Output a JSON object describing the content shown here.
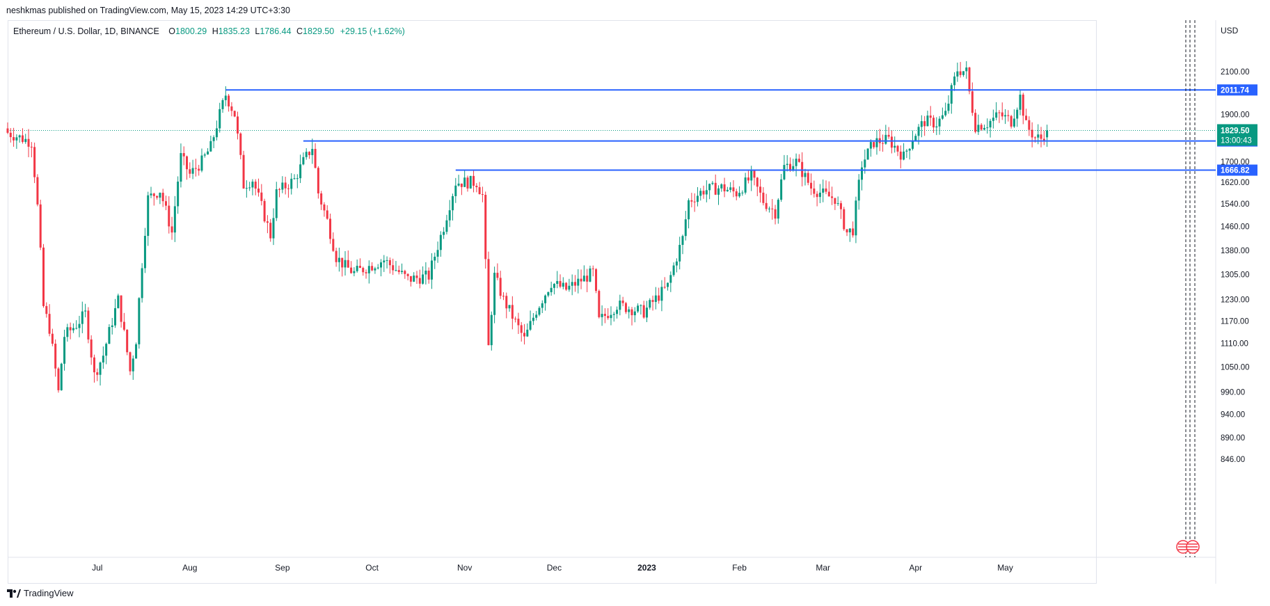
{
  "header": {
    "published_by": "neshkmas published on TradingView.com, May 15, 2023 14:29 UTC+3:30"
  },
  "legend": {
    "symbol": "Ethereum / U.S. Dollar, 1D, BINANCE",
    "open_label": "O",
    "open": "1800.29",
    "high_label": "H",
    "high": "1835.23",
    "low_label": "L",
    "low": "1786.44",
    "close_label": "C",
    "close": "1829.50",
    "change": "+29.15 (+1.62%)"
  },
  "price_axis": {
    "currency": "USD",
    "ticks": [
      "2100.00",
      "1900.00",
      "1700.00",
      "1620.00",
      "1540.00",
      "1460.00",
      "1380.00",
      "1305.00",
      "1230.00",
      "1170.00",
      "1110.00",
      "1050.00",
      "990.00",
      "940.00",
      "890.00",
      "846.00"
    ]
  },
  "time_axis": {
    "labels": [
      "Jul",
      "Aug",
      "Sep",
      "Oct",
      "Nov",
      "Dec",
      "2023",
      "Feb",
      "Mar",
      "Apr",
      "May"
    ]
  },
  "footer": {
    "brand": "TradingView"
  },
  "colors": {
    "up": "#089981",
    "down": "#f23645",
    "level_line": "#2962ff",
    "text": "#131722"
  },
  "chart_data": {
    "type": "candlestick",
    "symbol": "Ethereum / U.S. Dollar",
    "interval": "1D",
    "exchange": "BINANCE",
    "scale": "log",
    "ylim": [
      820,
      2300
    ],
    "last_price": 1829.5,
    "countdown": "13:00:43",
    "horizontal_levels": [
      {
        "value": 2011.74,
        "label": "2011.74",
        "from": "2022-08-13"
      },
      {
        "value": 1784.81,
        "label": "1784.81",
        "from": "2022-09-08"
      },
      {
        "value": 1666.82,
        "label": "1666.82",
        "from": "2022-10-29"
      }
    ],
    "anchors": [
      [
        "2022-06-01",
        1820
      ],
      [
        "2022-06-05",
        1800
      ],
      [
        "2022-06-09",
        1780
      ],
      [
        "2022-06-11",
        1530
      ],
      [
        "2022-06-13",
        1210
      ],
      [
        "2022-06-15",
        1150
      ],
      [
        "2022-06-18",
        990
      ],
      [
        "2022-06-20",
        1130
      ],
      [
        "2022-06-24",
        1160
      ],
      [
        "2022-06-27",
        1190
      ],
      [
        "2022-06-30",
        1030
      ],
      [
        "2022-07-03",
        1080
      ],
      [
        "2022-07-08",
        1230
      ],
      [
        "2022-07-12",
        1040
      ],
      [
        "2022-07-14",
        1120
      ],
      [
        "2022-07-18",
        1560
      ],
      [
        "2022-07-22",
        1590
      ],
      [
        "2022-07-26",
        1440
      ],
      [
        "2022-07-29",
        1720
      ],
      [
        "2022-08-01",
        1650
      ],
      [
        "2022-08-05",
        1700
      ],
      [
        "2022-08-08",
        1760
      ],
      [
        "2022-08-11",
        1900
      ],
      [
        "2022-08-13",
        1990
      ],
      [
        "2022-08-16",
        1900
      ],
      [
        "2022-08-19",
        1610
      ],
      [
        "2022-08-22",
        1630
      ],
      [
        "2022-08-28",
        1430
      ],
      [
        "2022-08-30",
        1580
      ],
      [
        "2022-09-05",
        1630
      ],
      [
        "2022-09-08",
        1700
      ],
      [
        "2022-09-11",
        1760
      ],
      [
        "2022-09-13",
        1580
      ],
      [
        "2022-09-16",
        1480
      ],
      [
        "2022-09-19",
        1360
      ],
      [
        "2022-09-22",
        1330
      ],
      [
        "2022-09-25",
        1310
      ],
      [
        "2022-09-30",
        1330
      ],
      [
        "2022-10-05",
        1350
      ],
      [
        "2022-10-13",
        1290
      ],
      [
        "2022-10-20",
        1300
      ],
      [
        "2022-10-25",
        1460
      ],
      [
        "2022-10-29",
        1620
      ],
      [
        "2022-11-05",
        1620
      ],
      [
        "2022-11-07",
        1570
      ],
      [
        "2022-11-09",
        1100
      ],
      [
        "2022-11-11",
        1300
      ],
      [
        "2022-11-14",
        1230
      ],
      [
        "2022-11-21",
        1120
      ],
      [
        "2022-11-25",
        1200
      ],
      [
        "2022-11-30",
        1280
      ],
      [
        "2022-12-05",
        1260
      ],
      [
        "2022-12-14",
        1310
      ],
      [
        "2022-12-16",
        1170
      ],
      [
        "2022-12-22",
        1215
      ],
      [
        "2022-12-31",
        1195
      ],
      [
        "2023-01-08",
        1270
      ],
      [
        "2023-01-13",
        1420
      ],
      [
        "2023-01-15",
        1550
      ],
      [
        "2023-01-20",
        1590
      ],
      [
        "2023-01-26",
        1600
      ],
      [
        "2023-01-31",
        1580
      ],
      [
        "2023-02-05",
        1640
      ],
      [
        "2023-02-09",
        1550
      ],
      [
        "2023-02-13",
        1510
      ],
      [
        "2023-02-16",
        1680
      ],
      [
        "2023-02-20",
        1700
      ],
      [
        "2023-02-25",
        1600
      ],
      [
        "2023-03-02",
        1570
      ],
      [
        "2023-03-05",
        1560
      ],
      [
        "2023-03-09",
        1440
      ],
      [
        "2023-03-11",
        1450
      ],
      [
        "2023-03-14",
        1690
      ],
      [
        "2023-03-18",
        1780
      ],
      [
        "2023-03-23",
        1790
      ],
      [
        "2023-03-28",
        1720
      ],
      [
        "2023-03-31",
        1800
      ],
      [
        "2023-04-04",
        1870
      ],
      [
        "2023-04-08",
        1860
      ],
      [
        "2023-04-11",
        1900
      ],
      [
        "2023-04-13",
        2010
      ],
      [
        "2023-04-15",
        2110
      ],
      [
        "2023-04-18",
        2100
      ],
      [
        "2023-04-19",
        2000
      ],
      [
        "2023-04-21",
        1850
      ],
      [
        "2023-04-25",
        1860
      ],
      [
        "2023-04-29",
        1900
      ],
      [
        "2023-05-03",
        1870
      ],
      [
        "2023-05-06",
        1980
      ],
      [
        "2023-05-08",
        1850
      ],
      [
        "2023-05-11",
        1800
      ],
      [
        "2023-05-13",
        1795
      ],
      [
        "2023-05-15",
        1829.5
      ]
    ]
  }
}
